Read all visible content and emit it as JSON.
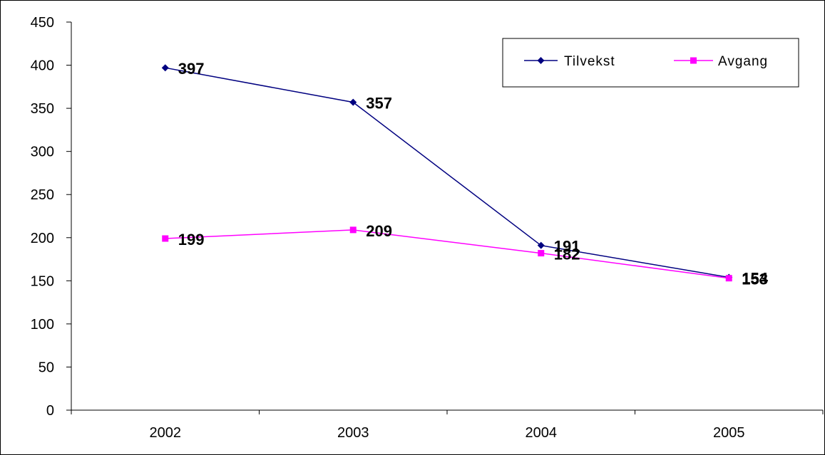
{
  "chart_data": {
    "type": "line",
    "categories": [
      "2002",
      "2003",
      "2004",
      "2005"
    ],
    "series": [
      {
        "name": "Tilvekst",
        "values": [
          397,
          357,
          191,
          154
        ],
        "color": "#000080",
        "marker": "diamond"
      },
      {
        "name": "Avgang",
        "values": [
          199,
          209,
          182,
          153
        ],
        "color": "#FF00FF",
        "marker": "square"
      }
    ],
    "title": "",
    "xlabel": "",
    "ylabel": "",
    "ylim": [
      0,
      450
    ],
    "yticks": [
      0,
      50,
      100,
      150,
      200,
      250,
      300,
      350,
      400,
      450
    ],
    "grid": false,
    "legend_position": "top-right"
  }
}
